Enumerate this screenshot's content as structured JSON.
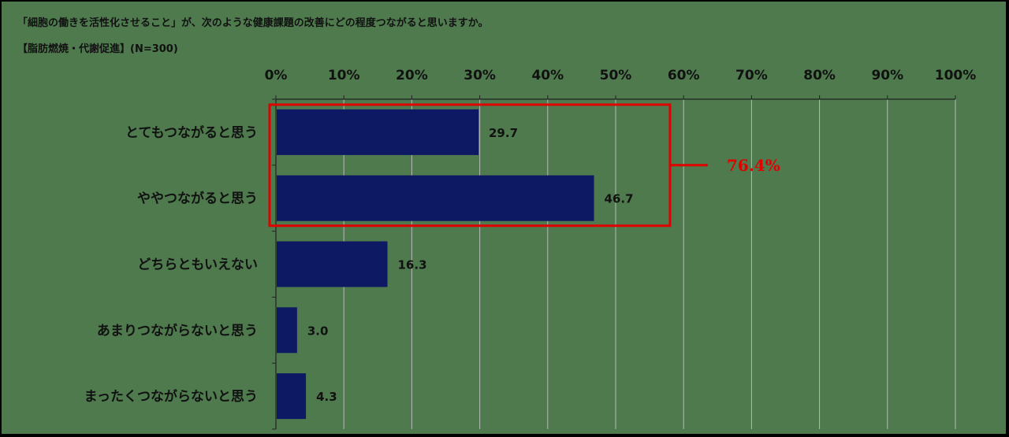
{
  "title": "「細胞の働きを活性化させること」が、次のような健康課題の改善にどの程度つながると思いますか。",
  "subtitle": "【脂肪燃焼・代謝促進】(N=300)",
  "colors": {
    "bar": "#0d1a63",
    "highlight": "#e00000",
    "grid": "#b8b8b8",
    "background": "#4e7a4e"
  },
  "chart_data": {
    "type": "bar",
    "orientation": "horizontal",
    "categories": [
      "とてもつながると思う",
      "ややつながると思う",
      "どちらともいえない",
      "あまりつながらないと思う",
      "まったくつながらないと思う"
    ],
    "values": [
      29.7,
      46.7,
      16.3,
      3.0,
      4.3
    ],
    "value_labels": [
      "29.7",
      "46.7",
      "16.3",
      "3.0",
      "4.3"
    ],
    "xlim": [
      0,
      100
    ],
    "x_ticks": [
      "0%",
      "10%",
      "20%",
      "30%",
      "40%",
      "50%",
      "60%",
      "70%",
      "80%",
      "90%",
      "100%"
    ],
    "grid": true,
    "annotation": {
      "text": "76.4%",
      "groups": [
        0,
        1
      ]
    }
  }
}
